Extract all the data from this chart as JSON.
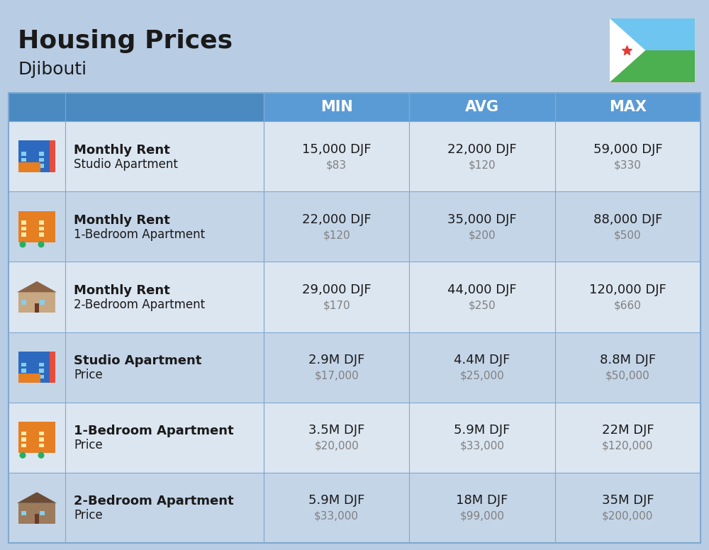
{
  "title": "Housing Prices",
  "subtitle": "Djibouti",
  "bg_color": "#b8cce4",
  "header_bg": "#5b9bd5",
  "header_text_color": "#ffffff",
  "row_bg_light": "#dce6f1",
  "row_bg_dark": "#c5d5e8",
  "col_headers": [
    "MIN",
    "AVG",
    "MAX"
  ],
  "rows": [
    {
      "icon": "studio_blue",
      "label_bold": "Monthly Rent",
      "label_light": "Studio Apartment",
      "min_djf": "15,000 DJF",
      "min_usd": "$83",
      "avg_djf": "22,000 DJF",
      "avg_usd": "$120",
      "max_djf": "59,000 DJF",
      "max_usd": "$330"
    },
    {
      "icon": "apartment_orange",
      "label_bold": "Monthly Rent",
      "label_light": "1-Bedroom Apartment",
      "min_djf": "22,000 DJF",
      "min_usd": "$120",
      "avg_djf": "35,000 DJF",
      "avg_usd": "$200",
      "max_djf": "88,000 DJF",
      "max_usd": "$500"
    },
    {
      "icon": "house_beige",
      "label_bold": "Monthly Rent",
      "label_light": "2-Bedroom Apartment",
      "min_djf": "29,000 DJF",
      "min_usd": "$170",
      "avg_djf": "44,000 DJF",
      "avg_usd": "$250",
      "max_djf": "120,000 DJF",
      "max_usd": "$660"
    },
    {
      "icon": "studio_blue",
      "label_bold": "Studio Apartment",
      "label_light": "Price",
      "min_djf": "2.9M DJF",
      "min_usd": "$17,000",
      "avg_djf": "4.4M DJF",
      "avg_usd": "$25,000",
      "max_djf": "8.8M DJF",
      "max_usd": "$50,000"
    },
    {
      "icon": "apartment_orange",
      "label_bold": "1-Bedroom Apartment",
      "label_light": "Price",
      "min_djf": "3.5M DJF",
      "min_usd": "$20,000",
      "avg_djf": "5.9M DJF",
      "avg_usd": "$33,000",
      "max_djf": "22M DJF",
      "max_usd": "$120,000"
    },
    {
      "icon": "house_brown",
      "label_bold": "2-Bedroom Apartment",
      "label_light": "Price",
      "min_djf": "5.9M DJF",
      "min_usd": "$33,000",
      "avg_djf": "18M DJF",
      "avg_usd": "$99,000",
      "max_djf": "35M DJF",
      "max_usd": "$200,000"
    }
  ],
  "divider_color": "#7fa9d0",
  "text_dark": "#1a1a1a",
  "text_gray": "#808080",
  "cell_text_size": 13,
  "label_bold_size": 13,
  "label_light_size": 12
}
